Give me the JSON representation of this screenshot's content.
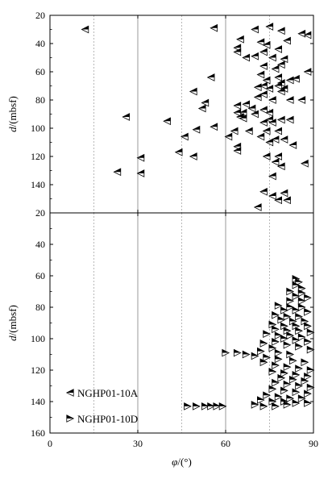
{
  "chart_data": [
    {
      "type": "scatter",
      "panel": "top",
      "ylabel_italic": "d",
      "ylabel_unit": "/(mbsf)",
      "ylim": [
        20,
        160
      ],
      "y_inverted": true,
      "yticks": [
        "20",
        "40",
        "60",
        "80",
        "100",
        "120",
        "140",
        "160"
      ],
      "xlim": [
        0,
        90
      ],
      "grid_lines_x": [
        15,
        30,
        45,
        60,
        75
      ],
      "series": [
        {
          "ref": "10A",
          "marker": "triangle-left",
          "points": [
            [
              12,
              30
            ],
            [
              56,
              29
            ],
            [
              70,
              30
            ],
            [
              75,
              28
            ],
            [
              79,
              31
            ],
            [
              86,
              33
            ],
            [
              88,
              34
            ],
            [
              65,
              37
            ],
            [
              72,
              39
            ],
            [
              81,
              38
            ],
            [
              64,
              43
            ],
            [
              74,
              41
            ],
            [
              78,
              44
            ],
            [
              64,
              46
            ],
            [
              73,
              46
            ],
            [
              70,
              49
            ],
            [
              67,
              50
            ],
            [
              76,
              50
            ],
            [
              80,
              51
            ],
            [
              79,
              55
            ],
            [
              73,
              56
            ],
            [
              77,
              58
            ],
            [
              88,
              60
            ],
            [
              72,
              62
            ],
            [
              78,
              64
            ],
            [
              84,
              65
            ],
            [
              82,
              66
            ],
            [
              74,
              66
            ],
            [
              79,
              68
            ],
            [
              73,
              70
            ],
            [
              78,
              70
            ],
            [
              55,
              64
            ],
            [
              71,
              71
            ],
            [
              75,
              72
            ],
            [
              80,
              72
            ],
            [
              79,
              74
            ],
            [
              49,
              74
            ],
            [
              73,
              76
            ],
            [
              71,
              78
            ],
            [
              76,
              80
            ],
            [
              82,
              80
            ],
            [
              86,
              80
            ],
            [
              53,
              82
            ],
            [
              67,
              83
            ],
            [
              64,
              84
            ],
            [
              52,
              86
            ],
            [
              69,
              86
            ],
            [
              73,
              87
            ],
            [
              64,
              89
            ],
            [
              66,
              89
            ],
            [
              75,
              89
            ],
            [
              70,
              90
            ],
            [
              65,
              92
            ],
            [
              26,
              92
            ],
            [
              66,
              93
            ],
            [
              75,
              94
            ],
            [
              79,
              94
            ],
            [
              82,
              94
            ],
            [
              40,
              95
            ],
            [
              73,
              96
            ],
            [
              76,
              96
            ],
            [
              56,
              99
            ],
            [
              50,
              101
            ],
            [
              63,
              102
            ],
            [
              68,
              102
            ],
            [
              74,
              102
            ],
            [
              78,
              102
            ],
            [
              46,
              106
            ],
            [
              61,
              106
            ],
            [
              72,
              106
            ],
            [
              77,
              108
            ],
            [
              80,
              108
            ],
            [
              75,
              110
            ],
            [
              83,
              112
            ],
            [
              64,
              113
            ],
            [
              64,
              116
            ],
            [
              44,
              117
            ],
            [
              49,
              120
            ],
            [
              74,
              120
            ],
            [
              78,
              120
            ],
            [
              31,
              121
            ],
            [
              77,
              124
            ],
            [
              87,
              125
            ],
            [
              79,
              127
            ],
            [
              23,
              131
            ],
            [
              31,
              132
            ],
            [
              76,
              134
            ],
            [
              73,
              145
            ],
            [
              80,
              146
            ],
            [
              76,
              148
            ],
            [
              78,
              151
            ],
            [
              81,
              151
            ],
            [
              71,
              156
            ]
          ]
        }
      ]
    },
    {
      "type": "scatter",
      "panel": "bottom",
      "ylabel_italic": "d",
      "ylabel_unit": "/(mbsf)",
      "ylim": [
        20,
        160
      ],
      "y_inverted": true,
      "yticks": [
        "20",
        "40",
        "60",
        "80",
        "100",
        "120",
        "140",
        "160"
      ],
      "xlim": [
        0,
        90
      ],
      "xticks": [
        "0",
        "30",
        "60",
        "90"
      ],
      "xlabel_italic": "φ",
      "xlabel_unit": "/(°)",
      "grid_lines_x": [
        15,
        30,
        45,
        60,
        75
      ],
      "legend": {
        "placement": "bottom-left",
        "entries": [
          {
            "marker": "triangle-left",
            "label": "NGHP01-10A"
          },
          {
            "marker": "triangle-right",
            "label": "NGHP01-10D"
          }
        ]
      },
      "series": [
        {
          "ref": "10D",
          "marker": "triangle-right",
          "points": [
            [
              84,
              62
            ],
            [
              85,
              64
            ],
            [
              84,
              66
            ],
            [
              86,
              68
            ],
            [
              82,
              70
            ],
            [
              86,
              71
            ],
            [
              84,
              73
            ],
            [
              88,
              74
            ],
            [
              82,
              76
            ],
            [
              86,
              76
            ],
            [
              78,
              79
            ],
            [
              82,
              80
            ],
            [
              86,
              80
            ],
            [
              80,
              82
            ],
            [
              84,
              82
            ],
            [
              88,
              83
            ],
            [
              77,
              85
            ],
            [
              81,
              86
            ],
            [
              85,
              86
            ],
            [
              79,
              88
            ],
            [
              83,
              89
            ],
            [
              87,
              89
            ],
            [
              76,
              91
            ],
            [
              80,
              92
            ],
            [
              84,
              92
            ],
            [
              88,
              92
            ],
            [
              77,
              94
            ],
            [
              81,
              95
            ],
            [
              85,
              95
            ],
            [
              89,
              96
            ],
            [
              74,
              97
            ],
            [
              78,
              98
            ],
            [
              82,
              98
            ],
            [
              86,
              99
            ],
            [
              80,
              100
            ],
            [
              84,
              101
            ],
            [
              88,
              102
            ],
            [
              77,
              102
            ],
            [
              73,
              103
            ],
            [
              81,
              104
            ],
            [
              85,
              105
            ],
            [
              76,
              106
            ],
            [
              89,
              107
            ],
            [
              72,
              108
            ],
            [
              78,
              109
            ],
            [
              82,
              110
            ],
            [
              60,
              109
            ],
            [
              64,
              109
            ],
            [
              67,
              110
            ],
            [
              70,
              111
            ],
            [
              74,
              112
            ],
            [
              78,
              113
            ],
            [
              83,
              114
            ],
            [
              87,
              115
            ],
            [
              73,
              115
            ],
            [
              77,
              117
            ],
            [
              81,
              118
            ],
            [
              85,
              119
            ],
            [
              89,
              120
            ],
            [
              76,
              121
            ],
            [
              80,
              122
            ],
            [
              84,
              123
            ],
            [
              88,
              124
            ],
            [
              79,
              125
            ],
            [
              83,
              126
            ],
            [
              87,
              127
            ],
            [
              77,
              128
            ],
            [
              81,
              129
            ],
            [
              85,
              130
            ],
            [
              89,
              131
            ],
            [
              76,
              132
            ],
            [
              80,
              133
            ],
            [
              84,
              134
            ],
            [
              88,
              135
            ],
            [
              74,
              136
            ],
            [
              78,
              137
            ],
            [
              82,
              138
            ],
            [
              86,
              138
            ],
            [
              72,
              139
            ],
            [
              76,
              140
            ],
            [
              80,
              140
            ],
            [
              84,
              141
            ],
            [
              88,
              141
            ],
            [
              70,
              142
            ],
            [
              73,
              143
            ],
            [
              77,
              143
            ],
            [
              81,
              142
            ],
            [
              47,
              143
            ],
            [
              50,
              143
            ],
            [
              53,
              143
            ],
            [
              55,
              143
            ],
            [
              57,
              143
            ],
            [
              59,
              143
            ]
          ]
        }
      ]
    }
  ]
}
